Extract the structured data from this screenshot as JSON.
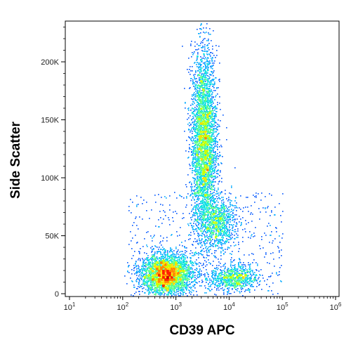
{
  "chart_data": {
    "type": "scatter",
    "style": "flow cytometry density dot plot",
    "xlabel": "CD39 APC",
    "ylabel": "Side Scatter",
    "x_scale": "log",
    "xlim": [
      10,
      1000000
    ],
    "ylim": [
      -5000,
      235000
    ],
    "grid": false,
    "x_ticks": [
      {
        "value": 10,
        "base": "10",
        "exp": "1"
      },
      {
        "value": 100,
        "base": "10",
        "exp": "2"
      },
      {
        "value": 1000,
        "base": "10",
        "exp": "3"
      },
      {
        "value": 10000,
        "base": "10",
        "exp": "4"
      },
      {
        "value": 100000,
        "base": "10",
        "exp": "5"
      },
      {
        "value": 1000000,
        "base": "10",
        "exp": "6"
      }
    ],
    "y_ticks": [
      {
        "value": 0,
        "label": "0"
      },
      {
        "value": 50000,
        "label": "50K"
      },
      {
        "value": 100000,
        "label": "100K"
      },
      {
        "value": 150000,
        "label": "150K"
      },
      {
        "value": 200000,
        "label": "200K"
      }
    ],
    "populations": [
      {
        "x_center": 650,
        "y_center": 17000,
        "x_spread_decades": 0.24,
        "y_spread": 8500,
        "count": 3200,
        "peak_density": "high"
      },
      {
        "x_center": 3300,
        "y_center": 130000,
        "x_spread_decades": 0.12,
        "y_spread": 40000,
        "count": 3800,
        "peak_density": "medium"
      },
      {
        "x_center": 6000,
        "y_center": 62000,
        "x_spread_decades": 0.17,
        "y_spread": 11000,
        "count": 900,
        "peak_density": "low"
      },
      {
        "x_center": 12000,
        "y_center": 14000,
        "x_spread_decades": 0.22,
        "y_spread": 5500,
        "count": 800,
        "peak_density": "low"
      }
    ],
    "colormap": [
      "#0000cc",
      "#0055ff",
      "#00aaff",
      "#00e0e0",
      "#55ff88",
      "#c8ff00",
      "#ffdd00",
      "#ff8800",
      "#ff2200",
      "#cc0000"
    ]
  }
}
